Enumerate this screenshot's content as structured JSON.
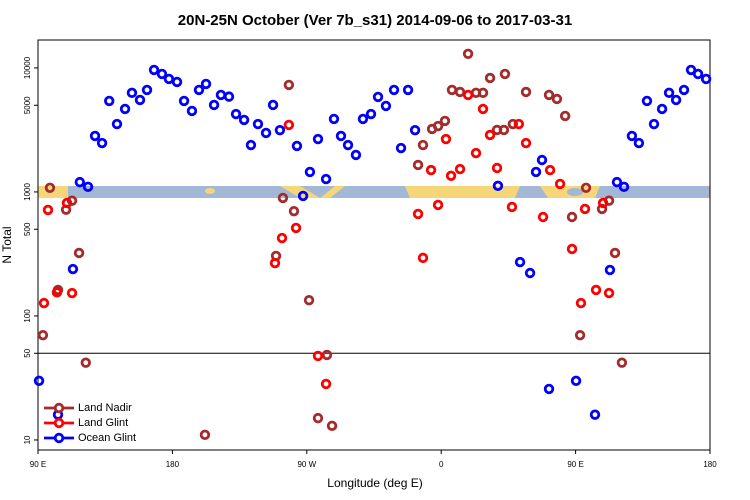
{
  "chart_data": {
    "type": "scatter",
    "title": "20N-25N October (Ver 7b_s31)   2014-09-06 to 2017-03-31",
    "xlabel": "Longitude (deg E)",
    "ylabel": "N Total",
    "log_y": true,
    "xlim": [
      90,
      540
    ],
    "ylim": [
      8.3,
      16800
    ],
    "xticks": [
      {
        "value": 90,
        "label": "90 E"
      },
      180,
      {
        "value": 270,
        "label": "90 W"
      },
      {
        "value": 360,
        "label": "0"
      },
      {
        "value": 450,
        "label": "90 E"
      },
      {
        "value": 540,
        "label": "180"
      }
    ],
    "yticks": [
      10,
      50,
      100,
      500,
      1000,
      5000,
      10000
    ],
    "reference_line": 50,
    "legend": "lower left",
    "series": [
      {
        "name": "Land Nadir",
        "color": "#a52a2a",
        "x": [
          93.3,
          98,
          108.8,
          112.8,
          103.4,
          117.5,
          122,
          201.8,
          254,
          258,
          261.4,
          249.4,
          271.5,
          277.5,
          283.5,
          286.9,
          344.5,
          347.8,
          353.9,
          357.9,
          362.5,
          367.2,
          372.6,
          378,
          383.3,
          388,
          392.7,
          402.7,
          397.4,
          402,
          408,
          416.8,
          432.2,
          437.5,
          443,
          457,
          447.6,
          453,
          467.7,
          472.4,
          476.4,
          481
        ],
        "values": [
          70,
          1080,
          720,
          850,
          162,
          322,
          42,
          11,
          895,
          7300,
          700,
          305,
          134,
          15,
          48.5,
          13,
          1650,
          2390,
          3220,
          3400,
          3740,
          6650,
          6400,
          13000,
          6300,
          6300,
          8300,
          8950,
          3160,
          3160,
          3530,
          6400,
          6060,
          5620,
          4100,
          1080,
          628,
          70,
          730,
          850,
          322,
          42
        ]
      },
      {
        "name": "Land Glint",
        "color": "#ff0000",
        "x": [
          96.7,
          94,
          102.7,
          109.4,
          112.8,
          248.7,
          253.4,
          258,
          262.8,
          277.5,
          282.9,
          344.5,
          347.8,
          353.2,
          357.9,
          363.2,
          366.6,
          372.6,
          378,
          383.3,
          388,
          392.7,
          397.4,
          407.4,
          412,
          416.8,
          428.2,
          432.9,
          439.6,
          447.6,
          453.6,
          456.3,
          463.7,
          468.4,
          472.4
        ],
        "values": [
          716,
          127,
          155,
          815,
          153,
          267,
          425,
          3470,
          513,
          47.6,
          28.3,
          665,
          294,
          1500,
          786,
          2670,
          1350,
          1530,
          6060,
          2060,
          4670,
          2880,
          1560,
          757,
          3530,
          2480,
          628,
          1500,
          1160,
          347,
          127,
          730,
          162,
          815,
          153
        ]
      },
      {
        "name": "Ocean Glint",
        "color": "#0000ff",
        "x": [
          90.7,
          103.4,
          113.4,
          118,
          123.5,
          128.2,
          132.9,
          137.7,
          142.9,
          148.3,
          152.9,
          158.3,
          163,
          167.7,
          173,
          177.7,
          183.1,
          187.8,
          193.1,
          197.8,
          202.5,
          207.9,
          212.5,
          217.9,
          222.6,
          228,
          232.6,
          237.3,
          242.7,
          247.4,
          252,
          263.4,
          267.5,
          272.1,
          277.5,
          282.9,
          288.2,
          292.9,
          297.6,
          302.9,
          307.6,
          313,
          317.7,
          323,
          328.4,
          333.1,
          337.8,
          342.5,
          398,
          412.8,
          419.5,
          423.5,
          427.5,
          432.2,
          450.3,
          463,
          473,
          477.7,
          482.4,
          487.7,
          492.4,
          497.8,
          502.5,
          507.9,
          512.6,
          517.3,
          522.6,
          527.3,
          532,
          537.4
        ],
        "values": [
          30,
          16,
          239,
          1200,
          1100,
          2830,
          2480,
          5420,
          3530,
          4670,
          6300,
          5520,
          6650,
          9640,
          8950,
          8150,
          7710,
          5420,
          4500,
          6650,
          7430,
          5030,
          6060,
          5870,
          4250,
          3810,
          2390,
          3530,
          2990,
          5030,
          3150,
          2350,
          929,
          1450,
          2670,
          1270,
          3880,
          2830,
          2390,
          1990,
          3880,
          4250,
          5840,
          4940,
          6650,
          2260,
          6650,
          3150,
          1120,
          272,
          222,
          1450,
          1810,
          25.8,
          30,
          16,
          235,
          1200,
          1100,
          2830,
          2480,
          5420,
          3530,
          4670,
          6300,
          5520,
          6650,
          9640,
          8950,
          8150
        ]
      }
    ]
  }
}
